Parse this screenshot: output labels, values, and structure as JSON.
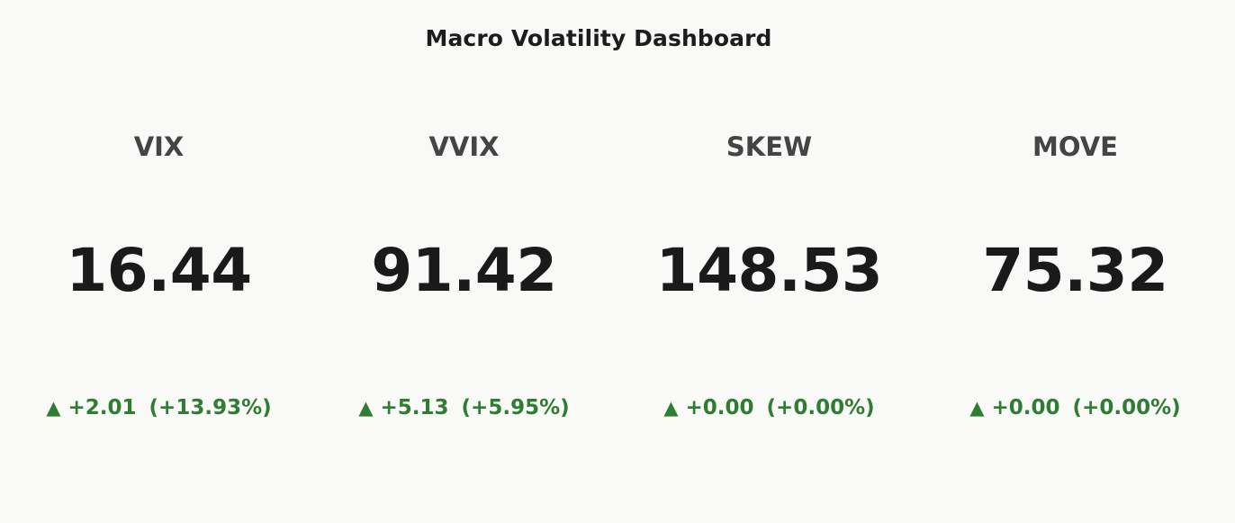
{
  "header": {
    "title": "Macro Volatility Dashboard"
  },
  "colors": {
    "background": "#f9f9f7",
    "positive": "#2e7d32",
    "ticker": "#444444",
    "value": "#1a1a1a"
  },
  "cards": [
    {
      "ticker": "VIX",
      "value": "16.44",
      "arrow": "▲",
      "arrow_icon": "triangle-up-icon",
      "change": "+2.01",
      "change_pct": "(+13.93%)"
    },
    {
      "ticker": "VVIX",
      "value": "91.42",
      "arrow": "▲",
      "arrow_icon": "triangle-up-icon",
      "change": "+5.13",
      "change_pct": "(+5.95%)"
    },
    {
      "ticker": "SKEW",
      "value": "148.53",
      "arrow": "▲",
      "arrow_icon": "triangle-up-icon",
      "change": "+0.00",
      "change_pct": "(+0.00%)"
    },
    {
      "ticker": "MOVE",
      "value": "75.32",
      "arrow": "▲",
      "arrow_icon": "triangle-up-icon",
      "change": "+0.00",
      "change_pct": "(+0.00%)"
    }
  ]
}
